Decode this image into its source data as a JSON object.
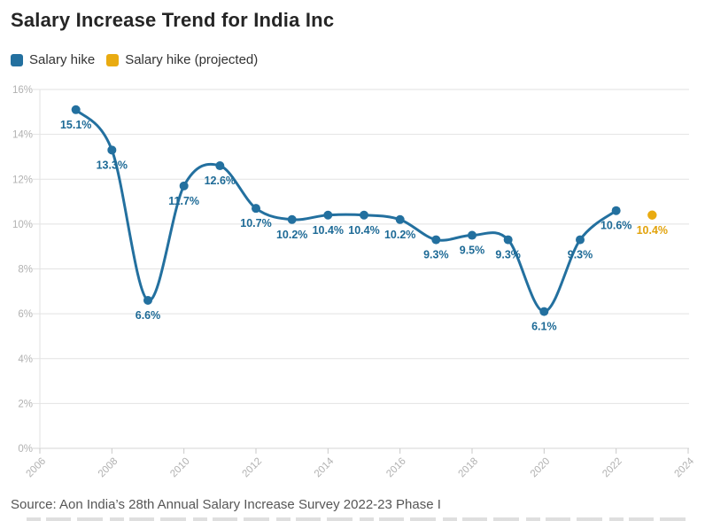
{
  "title": "Salary Increase Trend for India Inc",
  "source": "Source: Aon India’s 28th Annual Salary Increase Survey 2022-23 Phase I",
  "legend": [
    {
      "label": "Salary hike",
      "color": "#23709f"
    },
    {
      "label": "Salary hike (projected)",
      "color": "#e9ab11"
    }
  ],
  "colors": {
    "line": "#23709f",
    "line_label": "#1d6a96",
    "projected": "#e9ab11",
    "projected_label": "#e2a30c",
    "grid": "#e2e2e2",
    "baseline": "#d4d4d4",
    "tick": "#c9c9c9",
    "axis_text": "#b1b1b1"
  },
  "chart_data": {
    "type": "line",
    "title": "Salary Increase Trend for India Inc",
    "xlabel": "",
    "ylabel": "",
    "xlim": [
      2006,
      2024
    ],
    "ylim": [
      0,
      16
    ],
    "x_ticks": [
      2006,
      2008,
      2010,
      2012,
      2014,
      2016,
      2018,
      2020,
      2022,
      2024
    ],
    "y_ticks": [
      0,
      2,
      4,
      6,
      8,
      10,
      12,
      14,
      16
    ],
    "y_tick_suffix": "%",
    "grid": "horizontal",
    "legend_position": "top-left",
    "series": [
      {
        "name": "Salary hike",
        "style": "smooth-line-with-markers",
        "points": [
          {
            "year": 2007,
            "value": 15.1
          },
          {
            "year": 2008,
            "value": 13.3
          },
          {
            "year": 2009,
            "value": 6.6
          },
          {
            "year": 2010,
            "value": 11.7
          },
          {
            "year": 2011,
            "value": 12.6
          },
          {
            "year": 2012,
            "value": 10.7
          },
          {
            "year": 2013,
            "value": 10.2
          },
          {
            "year": 2014,
            "value": 10.4
          },
          {
            "year": 2015,
            "value": 10.4
          },
          {
            "year": 2016,
            "value": 10.2
          },
          {
            "year": 2017,
            "value": 9.3
          },
          {
            "year": 2018,
            "value": 9.5
          },
          {
            "year": 2019,
            "value": 9.3
          },
          {
            "year": 2020,
            "value": 6.1
          },
          {
            "year": 2021,
            "value": 9.3
          },
          {
            "year": 2022,
            "value": 10.6
          }
        ]
      },
      {
        "name": "Salary hike (projected)",
        "style": "marker-only",
        "points": [
          {
            "year": 2023,
            "value": 10.4
          }
        ]
      }
    ]
  }
}
